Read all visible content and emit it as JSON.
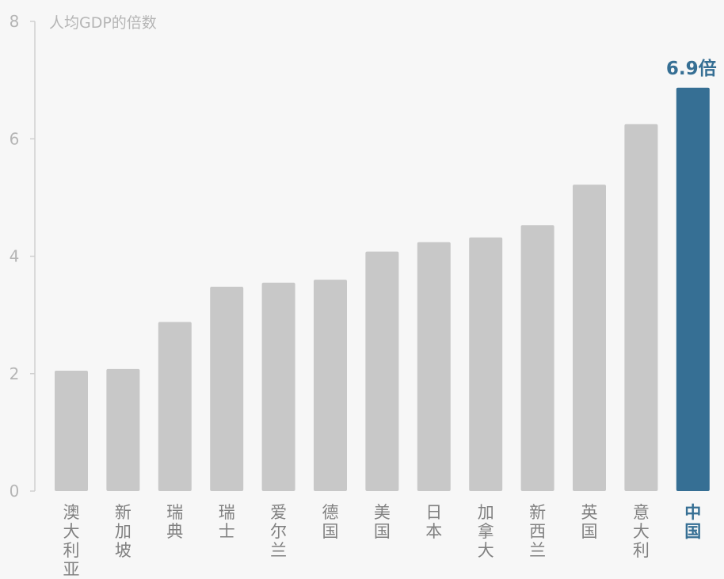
{
  "chart_data": {
    "type": "bar",
    "ylabel": "人均GDP的倍数",
    "categories": [
      "澳大利亚",
      "新加坡",
      "瑞典",
      "瑞士",
      "爱尔兰",
      "德国",
      "美国",
      "日本",
      "加拿大",
      "新西兰",
      "英国",
      "意大利",
      "中国"
    ],
    "values": [
      2.05,
      2.08,
      2.88,
      3.48,
      3.55,
      3.6,
      4.08,
      4.24,
      4.32,
      4.53,
      5.22,
      6.25,
      6.87
    ],
    "yticks": [
      "0",
      "2",
      "4",
      "6",
      "8"
    ],
    "ylim": [
      0,
      8
    ],
    "grid": false,
    "highlight_category": "中国",
    "annotation": "6.9倍",
    "colors": {
      "bar": "#c8c8c8",
      "highlight": "#366f94",
      "axis": "#d0d0d0",
      "text": "#b5b5b5",
      "category_text": "#808080"
    }
  }
}
